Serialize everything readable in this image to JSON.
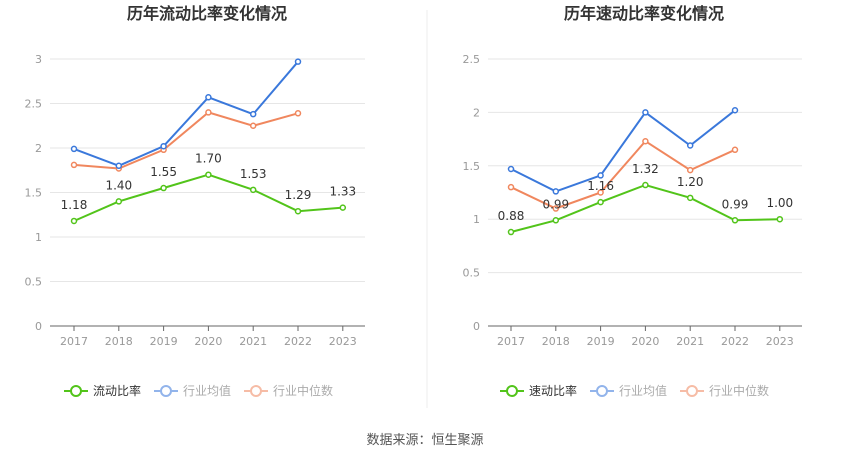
{
  "source_text": "数据来源：恒生聚源",
  "colors": {
    "green": "#52c41a",
    "blue": "#3a78db",
    "orange": "#f0875e",
    "axis": "#999999",
    "grid": "#e6e6e6",
    "label": "#333333"
  },
  "chart_data": [
    {
      "type": "line",
      "title": "历年流动比率变化情况",
      "categories": [
        "2017",
        "2018",
        "2019",
        "2020",
        "2021",
        "2022",
        "2023"
      ],
      "ylim": [
        0,
        3
      ],
      "yticks": [
        "0",
        "0.5",
        "1",
        "1.5",
        "2",
        "2.5",
        "3"
      ],
      "ytick_values": [
        0,
        0.5,
        1,
        1.5,
        2,
        2.5,
        3
      ],
      "grid": true,
      "legend_position": "bottom",
      "series": [
        {
          "name": "流动比率",
          "color": "#52c41a",
          "values": [
            1.18,
            1.4,
            1.55,
            1.7,
            1.53,
            1.29,
            1.33
          ],
          "labels": [
            "1.18",
            "1.40",
            "1.55",
            "1.70",
            "1.53",
            "1.29",
            "1.33"
          ]
        },
        {
          "name": "行业均值",
          "color": "#3a78db",
          "values": [
            1.99,
            1.8,
            2.02,
            2.57,
            2.38,
            2.97,
            null
          ]
        },
        {
          "name": "行业中位数",
          "color": "#f0875e",
          "values": [
            1.81,
            1.77,
            1.98,
            2.4,
            2.25,
            2.39,
            null
          ]
        }
      ]
    },
    {
      "type": "line",
      "title": "历年速动比率变化情况",
      "categories": [
        "2017",
        "2018",
        "2019",
        "2020",
        "2021",
        "2022",
        "2023"
      ],
      "ylim": [
        0,
        2.5
      ],
      "yticks": [
        "0",
        "0.5",
        "1",
        "1.5",
        "2",
        "2.5"
      ],
      "ytick_values": [
        0,
        0.5,
        1,
        1.5,
        2,
        2.5
      ],
      "grid": true,
      "legend_position": "bottom",
      "series": [
        {
          "name": "速动比率",
          "color": "#52c41a",
          "values": [
            0.88,
            0.99,
            1.16,
            1.32,
            1.2,
            0.99,
            1.0
          ],
          "labels": [
            "0.88",
            "0.99",
            "1.16",
            "1.32",
            "1.20",
            "0.99",
            "1.00"
          ]
        },
        {
          "name": "行业均值",
          "color": "#3a78db",
          "values": [
            1.47,
            1.26,
            1.41,
            2.0,
            1.69,
            2.02,
            null
          ]
        },
        {
          "name": "行业中位数",
          "color": "#f0875e",
          "values": [
            1.3,
            1.1,
            1.25,
            1.73,
            1.46,
            1.65,
            null
          ]
        }
      ]
    }
  ]
}
